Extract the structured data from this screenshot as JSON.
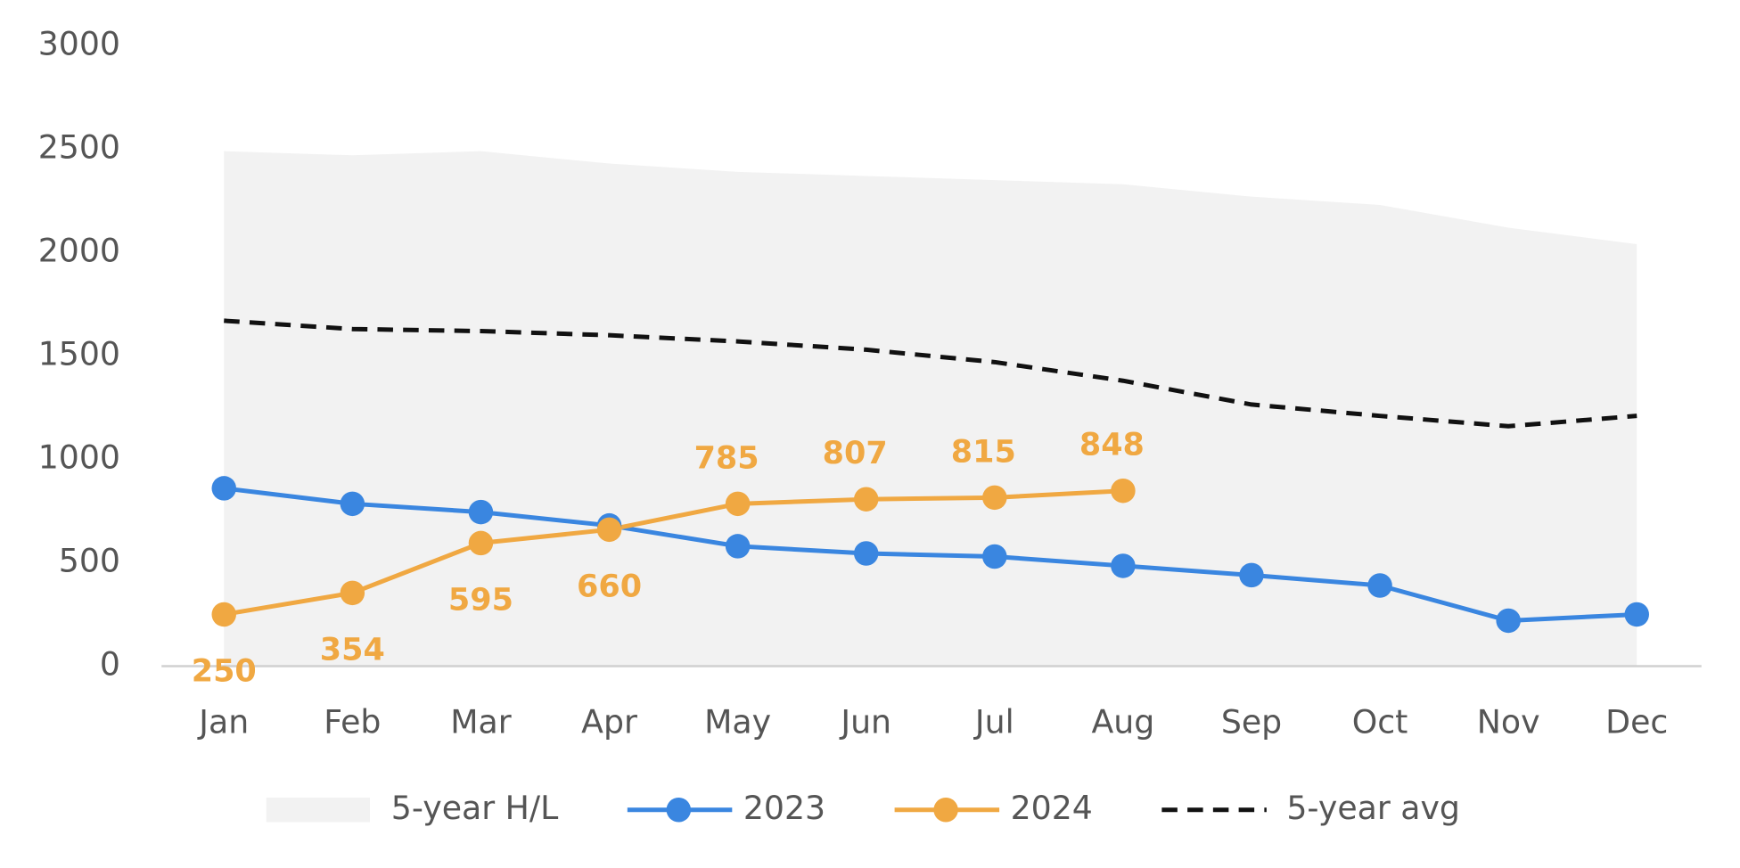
{
  "chart_data": {
    "type": "line",
    "categories": [
      "Jan",
      "Feb",
      "Mar",
      "Apr",
      "May",
      "Jun",
      "Jul",
      "Aug",
      "Sep",
      "Oct",
      "Nov",
      "Dec"
    ],
    "ylim": [
      0,
      3000
    ],
    "yticks": [
      0,
      500,
      1000,
      1500,
      2000,
      2500,
      3000
    ],
    "legend": "bottom",
    "series": [
      {
        "name": "5-year H/L",
        "style": "area",
        "color": "#f2f2f2",
        "values": [
          2490,
          2470,
          2490,
          2430,
          2390,
          2370,
          2350,
          2330,
          2270,
          2230,
          2120,
          2040
        ]
      },
      {
        "name": "2023",
        "style": "line",
        "markers": true,
        "color": "#3a86e0",
        "values": [
          860,
          785,
          745,
          680,
          580,
          545,
          530,
          485,
          440,
          390,
          220,
          250
        ]
      },
      {
        "name": "2024",
        "style": "line",
        "markers": true,
        "data_labels": true,
        "color": "#f0a842",
        "values": [
          250,
          354,
          595,
          660,
          785,
          807,
          815,
          848,
          null,
          null,
          null,
          null
        ]
      },
      {
        "name": "5-year avg",
        "style": "dashed",
        "color": "#111111",
        "values": [
          1670,
          1630,
          1620,
          1600,
          1570,
          1530,
          1470,
          1380,
          1265,
          1210,
          1160,
          1210
        ]
      }
    ]
  }
}
